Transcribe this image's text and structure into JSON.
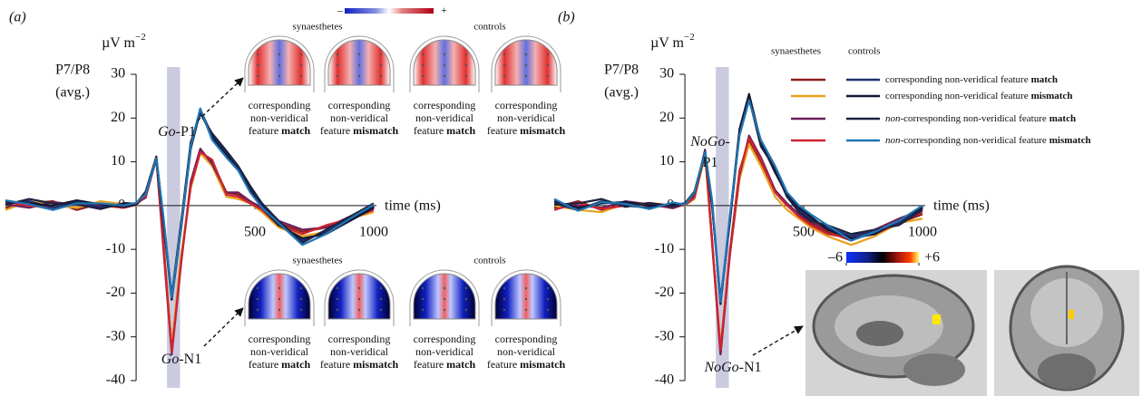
{
  "chart_data": [
    {
      "type": "line",
      "panel_label": "(a)",
      "y_label": [
        "P7/P8",
        "(avg.)"
      ],
      "y_unit": {
        "base": "µV m",
        "exponent": "−2"
      },
      "x_label": "time (ms)",
      "x": [
        -550,
        -450,
        -350,
        -250,
        -150,
        -50,
        0,
        40,
        85,
        115,
        150,
        190,
        230,
        270,
        320,
        380,
        430,
        480,
        530,
        600,
        700,
        800,
        900,
        1000
      ],
      "xlim": [
        -550,
        1000
      ],
      "ylim": [
        -40,
        30
      ],
      "xticks": [
        500,
        1000
      ],
      "yticks": [
        -40,
        -30,
        -20,
        -10,
        0,
        10,
        20,
        30
      ],
      "highlight": [
        130,
        185
      ],
      "annotations": [
        {
          "lines": [
            {
              "italic": "Go",
              "text": "-P1"
            }
          ]
        },
        {
          "lines": [
            {
              "italic": "Go",
              "text": "-N1"
            }
          ]
        }
      ],
      "series": [
        {
          "color": "#8c1c1c",
          "values": [
            -0.5,
            0.5,
            1,
            -1,
            0.5,
            -0.2,
            0.3,
            2,
            11,
            -8,
            -33,
            -12,
            5,
            12.5,
            10,
            3,
            2.5,
            1,
            -1,
            -4,
            -6,
            -5,
            -3,
            -1
          ]
        },
        {
          "color": "#e8a21e",
          "values": [
            -1,
            1,
            0,
            -0.5,
            1,
            0.3,
            0,
            2.5,
            10.5,
            -9,
            -32,
            -11,
            4,
            12,
            9,
            2,
            1.5,
            0.5,
            -1.5,
            -5,
            -7,
            -6,
            -3,
            -1.5
          ]
        },
        {
          "color": "#6e1f5a",
          "values": [
            0.3,
            -0.5,
            0.8,
            0.2,
            -0.5,
            0.5,
            0.5,
            1.8,
            10.8,
            -10,
            -34,
            -13,
            5.5,
            13,
            9.5,
            3,
            3,
            1,
            -0.5,
            -3.5,
            -5.5,
            -5,
            -2.5,
            -0.5
          ]
        },
        {
          "color": "#cf2330",
          "values": [
            0.8,
            0,
            -0.6,
            0.6,
            0,
            -0.5,
            0.2,
            2.2,
            11.2,
            -9,
            -33.5,
            -12.5,
            4.5,
            12.2,
            10.5,
            2.5,
            2,
            0.5,
            -1,
            -4.5,
            -6.5,
            -4.5,
            -3,
            -1
          ]
        },
        {
          "color": "#1d2f6e",
          "values": [
            0.5,
            1,
            -0.5,
            0.8,
            -0.3,
            0.2,
            0.5,
            3,
            11,
            -3,
            -21,
            -4,
            14,
            22,
            16,
            12,
            8.5,
            4,
            0,
            -4,
            -8,
            -6,
            -3,
            0
          ]
        },
        {
          "color": "#101634",
          "values": [
            1,
            0.5,
            0,
            1.2,
            0.3,
            -0.3,
            0.2,
            2.8,
            10.5,
            -4,
            -21.5,
            -5,
            13,
            21.5,
            15.5,
            11.5,
            8,
            3.5,
            -0.5,
            -4.5,
            -7.5,
            -6.5,
            -3.5,
            -0.5
          ]
        },
        {
          "color": "#1c2340",
          "values": [
            0.2,
            1.5,
            0.5,
            0.3,
            -0.8,
            0.6,
            0.4,
            3.2,
            11.2,
            -3.5,
            -20.5,
            -3.5,
            14.5,
            21,
            16.5,
            12.5,
            9,
            4.5,
            0.5,
            -3.5,
            -8.5,
            -5.5,
            -2.5,
            0.5
          ]
        },
        {
          "color": "#1f76b4",
          "values": [
            1.2,
            0.3,
            -1,
            0.5,
            0.5,
            0,
            0.6,
            2.6,
            10.8,
            -2.5,
            -21,
            -4.5,
            13.5,
            22.2,
            15,
            11,
            8,
            3,
            -0.5,
            -4,
            -9,
            -6.5,
            -3,
            0.2
          ]
        }
      ]
    },
    {
      "type": "line",
      "panel_label": "(b)",
      "y_label": [
        "P7/P8",
        "(avg.)"
      ],
      "y_unit": {
        "base": "µV m",
        "exponent": "−2"
      },
      "x_label": "time (ms)",
      "x": [
        -550,
        -450,
        -350,
        -250,
        -150,
        -50,
        0,
        40,
        85,
        115,
        150,
        190,
        230,
        270,
        320,
        380,
        430,
        480,
        530,
        600,
        700,
        800,
        900,
        1000
      ],
      "xlim": [
        -550,
        1000
      ],
      "ylim": [
        -40,
        30
      ],
      "xticks": [
        500,
        1000
      ],
      "yticks": [
        -40,
        -30,
        -20,
        -10,
        0,
        10,
        20,
        30
      ],
      "highlight": [
        130,
        185
      ],
      "annotations": [
        {
          "lines": [
            {
              "italic": "NoGo",
              "text": "-"
            },
            {
              "text": "P1"
            }
          ]
        },
        {
          "lines": [
            {
              "italic": "NoGo",
              "text": "-N1"
            }
          ]
        }
      ],
      "legend": {
        "columns": [
          "synaesthetes",
          "controls"
        ],
        "rows": [
          {
            "text": "corresponding non-veridical feature",
            "emphasis": "match"
          },
          {
            "text": "corresponding non-veridical feature",
            "emphasis": "mismatch"
          },
          {
            "italic": "non",
            "text": "-corresponding non-veridical feature",
            "emphasis": "match"
          },
          {
            "italic": "non",
            "text": "-corresponding non-veridical feature",
            "emphasis": "mismatch"
          }
        ]
      },
      "series": [
        {
          "color": "#8c1c1c",
          "values": [
            -0.5,
            1,
            -1,
            0.5,
            0,
            -0.3,
            0.2,
            2,
            12.5,
            -8,
            -34,
            -10,
            8,
            15,
            10,
            3,
            0,
            -2,
            -4,
            -6,
            -8,
            -6,
            -4,
            -2
          ]
        },
        {
          "color": "#e8a21e",
          "values": [
            0,
            -1,
            -1.5,
            0.5,
            -0.5,
            0.2,
            0,
            1.5,
            11.5,
            -9,
            -32,
            -11,
            6,
            14,
            9,
            2,
            -1,
            -3,
            -5,
            -7,
            -9,
            -7,
            -4,
            -3
          ]
        },
        {
          "color": "#6e1f5a",
          "values": [
            0.5,
            0,
            -0.5,
            1,
            0.3,
            -0.6,
            0.3,
            2.2,
            12.8,
            -9,
            -34,
            -11,
            7,
            16,
            11,
            3.5,
            0.5,
            -2,
            -3.5,
            -5.5,
            -7,
            -5.5,
            -3,
            -1
          ]
        },
        {
          "color": "#cf2330",
          "values": [
            -1,
            0.6,
            -0.8,
            0,
            0.6,
            0,
            0.1,
            1.8,
            12,
            -8.5,
            -33,
            -10.5,
            7.5,
            15.5,
            10.5,
            3,
            0,
            -2.5,
            -4.5,
            -6.5,
            -7.5,
            -6.5,
            -4,
            -1.5
          ]
        },
        {
          "color": "#1d2f6e",
          "values": [
            0.5,
            -1,
            1,
            0,
            -0.5,
            0.5,
            0.3,
            3,
            12,
            0,
            -22,
            -3,
            17,
            25,
            14,
            8,
            2,
            -1,
            -3,
            -5,
            -7,
            -6,
            -4,
            -1
          ]
        },
        {
          "color": "#101634",
          "values": [
            1,
            -0.5,
            0.5,
            0.8,
            0,
            0.2,
            0.5,
            3.2,
            12.3,
            0.5,
            -22.5,
            -2.5,
            17.5,
            25.5,
            14.5,
            7.5,
            2.5,
            -0.5,
            -2.5,
            -5.5,
            -7.5,
            -6.5,
            -3.5,
            -0.5
          ]
        },
        {
          "color": "#1c2340",
          "values": [
            0.2,
            0.5,
            1.5,
            -0.3,
            0.6,
            -0.2,
            0.4,
            2.8,
            11.8,
            -0.5,
            -21.5,
            -3.5,
            16.5,
            24.5,
            13.5,
            8.5,
            2,
            -1.5,
            -3.5,
            -4.5,
            -6.5,
            -5.5,
            -4.5,
            -1
          ]
        },
        {
          "color": "#1f76b4",
          "values": [
            1.5,
            -1.2,
            0.8,
            0.4,
            -0.8,
            0.7,
            0.2,
            3,
            12.2,
            1,
            -22,
            -2,
            16,
            24,
            15,
            9,
            3,
            0,
            -2,
            -4.5,
            -8,
            -6,
            -3.5,
            0
          ]
        }
      ]
    }
  ],
  "topomaps": {
    "colorbar": [
      "–",
      "+"
    ],
    "rows": [
      {
        "groups": [
          "synaesthetes",
          "controls"
        ],
        "captions": [
          {
            "lines": [
              "corresponding",
              "non-veridical",
              "feature"
            ],
            "emphasis": "match"
          },
          {
            "lines": [
              "corresponding",
              "non-veridical",
              "feature"
            ],
            "emphasis": "mismatch"
          },
          {
            "lines": [
              "corresponding",
              "non-veridical",
              "feature"
            ],
            "emphasis": "match"
          },
          {
            "lines": [
              "corresponding",
              "non-veridical",
              "feature"
            ],
            "emphasis": "mismatch"
          }
        ]
      },
      {
        "groups": [
          "synaesthetes",
          "controls"
        ],
        "captions": [
          {
            "lines": [
              "corresponding",
              "non-veridical",
              "feature"
            ],
            "emphasis": "match"
          },
          {
            "lines": [
              "corresponding",
              "non-veridical",
              "feature"
            ],
            "emphasis": "mismatch"
          },
          {
            "lines": [
              "corresponding",
              "non-veridical",
              "feature"
            ],
            "emphasis": "match"
          },
          {
            "lines": [
              "corresponding",
              "non-veridical",
              "feature"
            ],
            "emphasis": "mismatch"
          }
        ]
      }
    ]
  },
  "brain_map": {
    "colorbar_lim": [
      -6,
      6
    ],
    "colorbar_ticks": [
      {
        "value": -6,
        "label": "–6"
      },
      {
        "value": 6,
        "label": "+6"
      }
    ]
  }
}
